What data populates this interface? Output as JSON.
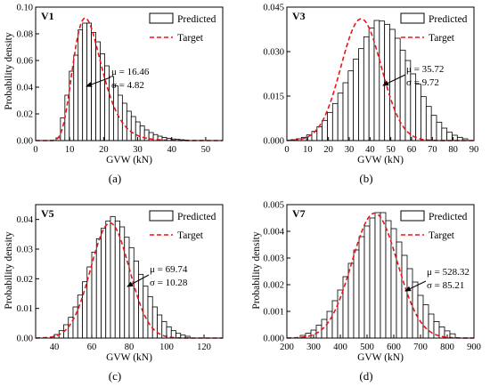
{
  "chart_data": [
    {
      "type": "bar",
      "panel": "V1",
      "caption": "(a)",
      "xlabel": "GVW (kN)",
      "ylabel": "Probability density",
      "xlim": [
        0,
        55
      ],
      "ylim": [
        0,
        0.1
      ],
      "xticks": [
        0,
        10,
        20,
        30,
        40,
        50
      ],
      "yticks": [
        "0.00",
        "0.02",
        "0.04",
        "0.06",
        "0.08",
        "0.10"
      ],
      "legend": [
        "Predicted",
        "Target"
      ],
      "mu_label": "μ = 16.46",
      "sigma_label": "σ = 4.82",
      "mu": 16.46,
      "sigma": 4.82,
      "lognormal": true,
      "bin_start": 6,
      "bin_width": 1.3,
      "values": [
        0.002,
        0.017,
        0.034,
        0.052,
        0.064,
        0.083,
        0.088,
        0.088,
        0.081,
        0.074,
        0.065,
        0.056,
        0.048,
        0.041,
        0.034,
        0.028,
        0.022,
        0.018,
        0.014,
        0.011,
        0.008,
        0.006,
        0.0045,
        0.0033,
        0.0024,
        0.0017,
        0.0012,
        0.0009,
        0.0006,
        0.0004
      ]
    },
    {
      "type": "bar",
      "panel": "V3",
      "caption": "(b)",
      "xlabel": "GVW (kN)",
      "ylabel": "",
      "xlim": [
        0,
        90
      ],
      "ylim": [
        0,
        0.045
      ],
      "xticks": [
        0,
        10,
        20,
        30,
        40,
        50,
        60,
        70,
        80,
        90
      ],
      "yticks": [
        "0.000",
        "0.015",
        "0.030",
        "0.045"
      ],
      "legend": [
        "Predicted",
        "Target"
      ],
      "mu_label": "μ = 35.72",
      "sigma_label": "σ = 9.72",
      "mu": 35.72,
      "sigma": 9.72,
      "lognormal": false,
      "bin_start": 2,
      "bin_width": 2.5,
      "values": [
        0.0003,
        0.0006,
        0.0011,
        0.0019,
        0.0031,
        0.0047,
        0.0068,
        0.0095,
        0.0125,
        0.016,
        0.0195,
        0.0235,
        0.0275,
        0.031,
        0.035,
        0.038,
        0.0405,
        0.0403,
        0.0392,
        0.0375,
        0.0345,
        0.0305,
        0.027,
        0.0225,
        0.019,
        0.0148,
        0.0115,
        0.0085,
        0.0062,
        0.0042,
        0.0028,
        0.0018,
        0.0011,
        0.0006
      ]
    },
    {
      "type": "bar",
      "panel": "V5",
      "caption": "(c)",
      "xlabel": "GVW (kN)",
      "ylabel": "Probability density",
      "xlim": [
        30,
        130
      ],
      "ylim": [
        0,
        0.045
      ],
      "xticks": [
        40,
        60,
        80,
        100,
        120
      ],
      "yticks": [
        "0.00",
        "0.01",
        "0.02",
        "0.03",
        "0.04"
      ],
      "legend": [
        "Predicted",
        "Target"
      ],
      "mu_label": "μ = 69.74",
      "sigma_label": "σ = 10.28",
      "mu": 69.74,
      "sigma": 10.28,
      "lognormal": false,
      "bin_start": 40,
      "bin_width": 2.5,
      "values": [
        0.0012,
        0.0025,
        0.0045,
        0.007,
        0.0105,
        0.0145,
        0.019,
        0.024,
        0.029,
        0.0335,
        0.037,
        0.0395,
        0.041,
        0.0395,
        0.0375,
        0.034,
        0.0305,
        0.026,
        0.0215,
        0.0175,
        0.014,
        0.0105,
        0.0078,
        0.0056,
        0.0038,
        0.0025,
        0.0016,
        0.001,
        0.0006
      ]
    },
    {
      "type": "bar",
      "panel": "V7",
      "caption": "(d)",
      "xlabel": "GVW (kN)",
      "ylabel": "Probability density",
      "xlim": [
        200,
        900
      ],
      "ylim": [
        0,
        0.005
      ],
      "xticks": [
        200,
        300,
        400,
        500,
        600,
        700,
        800,
        900
      ],
      "yticks": [
        "0.000",
        "0.001",
        "0.002",
        "0.003",
        "0.004",
        "0.005"
      ],
      "legend": [
        "Predicted",
        "Target"
      ],
      "mu_label": "μ = 528.32",
      "sigma_label": "σ = 85.21",
      "mu": 528.32,
      "sigma": 85.21,
      "lognormal": false,
      "bin_start": 250,
      "bin_width": 20,
      "values": [
        0.0001,
        0.00018,
        0.0003,
        0.00048,
        0.0007,
        0.001,
        0.0014,
        0.0018,
        0.0023,
        0.0028,
        0.0033,
        0.0038,
        0.0042,
        0.0045,
        0.0047,
        0.0047,
        0.0044,
        0.0041,
        0.0036,
        0.0031,
        0.0026,
        0.0021,
        0.0016,
        0.00125,
        0.0009,
        0.00062,
        0.00042,
        0.00027,
        0.00016
      ]
    }
  ]
}
